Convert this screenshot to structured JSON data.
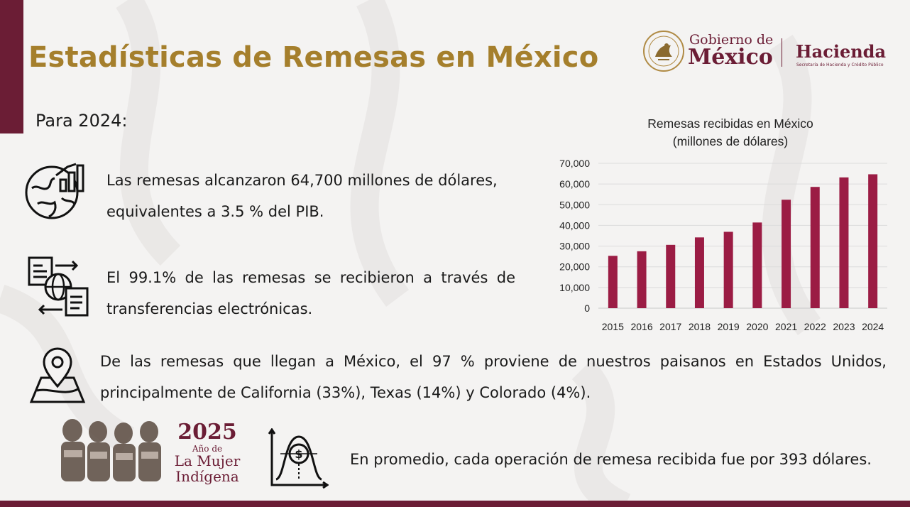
{
  "page": {
    "title": "Estadísticas de Remesas en México",
    "subtitle": "Para 2024:"
  },
  "branding": {
    "gobierno_line1": "Gobierno de",
    "gobierno_line2": "México",
    "hacienda": "Hacienda",
    "hacienda_sub": "Secretaría de Hacienda y Crédito Público",
    "accent_color": "#6b1d35",
    "title_color": "#a57f2c"
  },
  "facts": [
    {
      "icon": "globe-chart-icon",
      "text": "Las remesas alcanzaron 64,700 millones de dólares, equivalentes a 3.5 % del PIB."
    },
    {
      "icon": "electronic-transfer-icon",
      "text": "El 99.1% de las remesas se recibieron a través de transferencias electrónicas."
    },
    {
      "icon": "map-pin-icon",
      "text": "De las remesas que llegan a México, el 97 % proviene de nuestros paisanos en Estados Unidos, principalmente de California (33%), Texas (14%) y Colorado (4%)."
    },
    {
      "icon": "money-distribution-icon",
      "text": "En promedio, cada operación de remesa recibida fue por 393 dólares."
    }
  ],
  "badge": {
    "year": "2025",
    "line1": "Año de",
    "line2": "La Mujer",
    "line3": "Indígena"
  },
  "chart_data": {
    "type": "bar",
    "title": "Remesas recibidas en México\n(millones de dólares)",
    "title_lines": [
      "Remesas recibidas en México",
      "(millones de dólares)"
    ],
    "categories": [
      "2015",
      "2016",
      "2017",
      "2018",
      "2019",
      "2020",
      "2021",
      "2022",
      "2023",
      "2024"
    ],
    "values": [
      25300,
      27500,
      30600,
      34200,
      36900,
      41400,
      52400,
      58600,
      63200,
      64700
    ],
    "ylim": [
      0,
      70000
    ],
    "yticks": [
      "0",
      "10,000",
      "20,000",
      "30,000",
      "40,000",
      "50,000",
      "60,000",
      "70,000"
    ],
    "xlabel": "",
    "ylabel": "",
    "grid": true,
    "bar_color": "#9b1c44"
  }
}
